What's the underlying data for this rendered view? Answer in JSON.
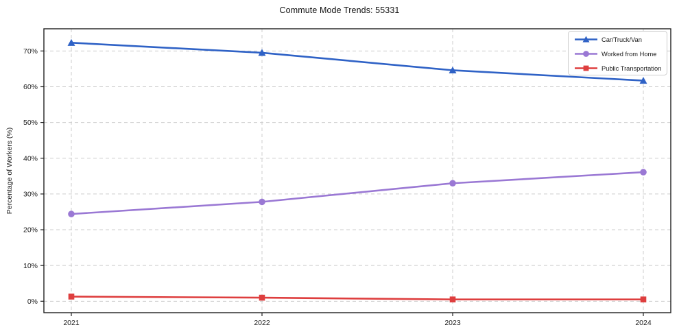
{
  "chart_data": {
    "type": "line",
    "title": "Commute Mode Trends: 55331",
    "xlabel": "",
    "ylabel": "Percentage of Workers (%)",
    "categories": [
      "2021",
      "2022",
      "2023",
      "2024"
    ],
    "y_ticks": [
      0,
      10,
      20,
      30,
      40,
      50,
      60,
      70
    ],
    "y_tick_suffix": "%",
    "ylim": [
      -3.2,
      76.2
    ],
    "grid": "dashed horizontal and vertical",
    "legend_position": "top-right inside plot",
    "series": [
      {
        "name": "Car/Truck/Van",
        "color": "#2f62c6",
        "marker": "triangle",
        "values": [
          72.3,
          69.5,
          64.6,
          61.7
        ]
      },
      {
        "name": "Worked from Home",
        "color": "#9a78d4",
        "marker": "circle",
        "values": [
          24.4,
          27.8,
          33.0,
          36.1
        ]
      },
      {
        "name": "Public Transportation",
        "color": "#de3e3e",
        "marker": "square",
        "values": [
          1.3,
          1.0,
          0.5,
          0.5
        ]
      }
    ]
  },
  "colors": {
    "background": "#ffffff",
    "grid": "#cccccc",
    "spine": "#1f1f1f",
    "tick_label": "#1a1a1a",
    "legend_border": "#cccccc",
    "legend_background": "#ffffff"
  }
}
